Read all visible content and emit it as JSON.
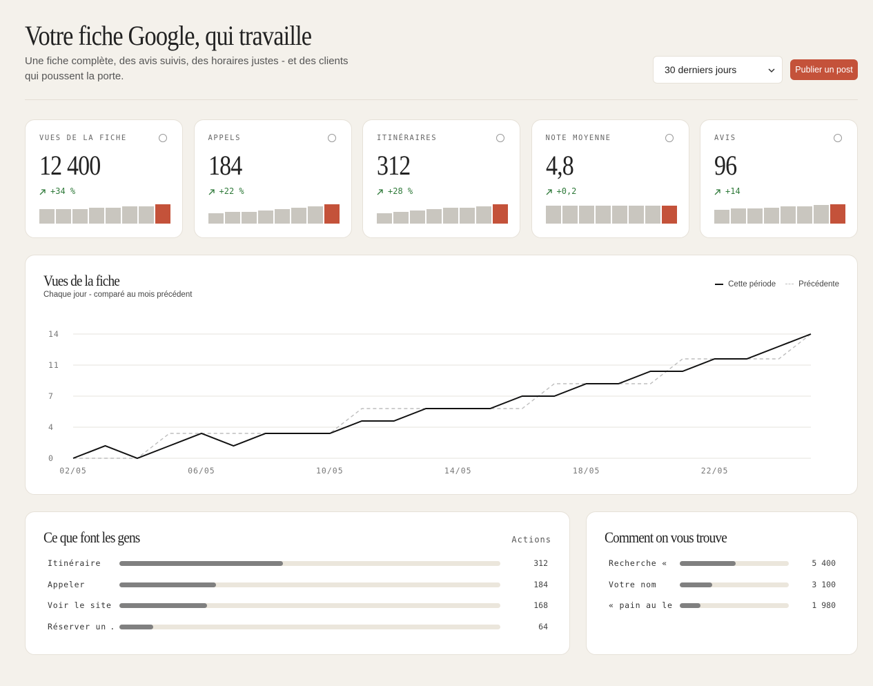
{
  "header": {
    "title": "Votre fiche Google, qui travaille",
    "subtitle": "Une fiche complète, des avis suivis, des horaires justes - et des clients qui poussent la porte.",
    "period": "30 derniers jours",
    "action": "Publier un post"
  },
  "kpis": [
    {
      "label": "VUES DE LA FICHE",
      "value": "12 400",
      "delta": "+34 %",
      "spark": [
        21,
        21,
        21,
        23,
        23,
        25,
        25,
        28
      ]
    },
    {
      "label": "APPELS",
      "value": "184",
      "delta": "+22 %",
      "spark": [
        15,
        17,
        17,
        19,
        21,
        23,
        25,
        28
      ]
    },
    {
      "label": "ITINÉRAIRES",
      "value": "312",
      "delta": "+28 %",
      "spark": [
        15,
        17,
        19,
        21,
        23,
        23,
        25,
        28
      ]
    },
    {
      "label": "NOTE MOYENNE",
      "value": "4,8",
      "delta": "+0,2",
      "spark": [
        26,
        26,
        26,
        26,
        26,
        26,
        26,
        26
      ]
    },
    {
      "label": "AVIS",
      "value": "96",
      "delta": "+14",
      "spark": [
        20,
        22,
        22,
        23,
        25,
        25,
        27,
        28
      ]
    }
  ],
  "chart_data": {
    "type": "line",
    "title": "Vues de la fiche",
    "subtitle": "Chaque jour - comparé au mois précédent",
    "categories": [
      "02/05",
      null,
      null,
      null,
      "06/05",
      null,
      null,
      null,
      "10/05",
      null,
      null,
      null,
      "14/05",
      null,
      null,
      null,
      "18/05",
      null,
      null,
      null,
      "22/05",
      null,
      null,
      null
    ],
    "series": [
      {
        "name": "Cette période",
        "color": "#111111",
        "dashed": false,
        "values": [
          0,
          1.4,
          0,
          1.4,
          2.8,
          1.4,
          2.8,
          2.8,
          2.8,
          4.2,
          4.2,
          5.6,
          5.6,
          5.6,
          7,
          7,
          8.4,
          8.4,
          9.8,
          9.8,
          11.2,
          11.2,
          12.6,
          14
        ]
      },
      {
        "name": "Précédente",
        "color": "#bdbdbd",
        "dashed": true,
        "values": [
          0,
          0,
          0,
          2.8,
          2.8,
          2.8,
          2.8,
          2.8,
          2.8,
          5.6,
          5.6,
          5.6,
          5.6,
          5.6,
          5.6,
          8.4,
          8.4,
          8.4,
          8.4,
          11.2,
          11.2,
          11.2,
          11.2,
          14
        ]
      }
    ],
    "ylim": [
      0,
      14
    ],
    "yticks": [
      0,
      {
        "value": 3.5,
        "label": "4"
      },
      7,
      {
        "value": 10.5,
        "label": "11"
      },
      14
    ],
    "grid": true
  },
  "actions": {
    "title": "Ce que font les gens",
    "column": "Actions",
    "rows": [
      {
        "label": "Itinéraire",
        "value": 312
      },
      {
        "label": "Appeler",
        "value": 184
      },
      {
        "label": "Voir le site",
        "value": 168
      },
      {
        "label": "Réserver un …",
        "value": 64
      }
    ]
  },
  "sources": {
    "title": "Comment on vous trouve",
    "rows": [
      {
        "label": "Recherche « …",
        "value": 5400,
        "value_label": "5 400"
      },
      {
        "label": "Votre nom",
        "value": 3100,
        "value_label": "3 100"
      },
      {
        "label": "« pain au le…",
        "value": 1980,
        "value_label": "1 980"
      }
    ]
  }
}
